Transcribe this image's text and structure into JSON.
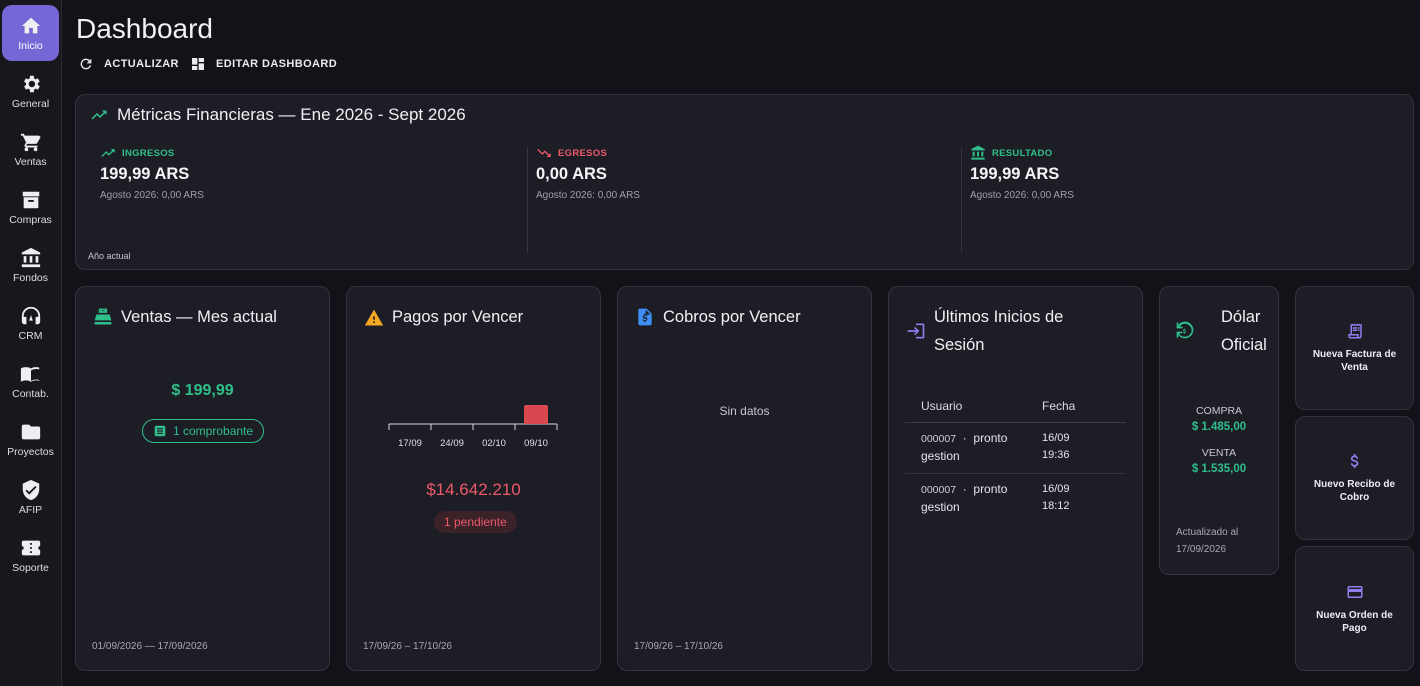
{
  "sidebar": {
    "items": [
      {
        "label": "Inicio",
        "icon": "home-icon",
        "active": true
      },
      {
        "label": "General",
        "icon": "gear-icon"
      },
      {
        "label": "Ventas",
        "icon": "cart-icon"
      },
      {
        "label": "Compras",
        "icon": "archive-box-icon"
      },
      {
        "label": "Fondos",
        "icon": "bank-icon"
      },
      {
        "label": "CRM",
        "icon": "headset-icon"
      },
      {
        "label": "Contab.",
        "icon": "book-icon"
      },
      {
        "label": "Proyectos",
        "icon": "folder-icon"
      },
      {
        "label": "AFIP",
        "icon": "shield-check-icon"
      },
      {
        "label": "Soporte",
        "icon": "ticket-icon"
      }
    ]
  },
  "header": {
    "title": "Dashboard",
    "refresh_label": "ACTUALIZAR",
    "edit_label": "EDITAR DASHBOARD"
  },
  "metrics": {
    "title": "Métricas Financieras — Ene 2026 - Sept 2026",
    "footnote": "Año actual",
    "items": [
      {
        "label": "INGRESOS",
        "value": "199,99 ARS",
        "sub": "Agosto 2026: 0,00 ARS",
        "color": "#2fbf8a",
        "icon": "trending-up-icon"
      },
      {
        "label": "EGRESOS",
        "value": "0,00 ARS",
        "sub": "Agosto 2026: 0,00 ARS",
        "color": "#ec5a6a",
        "icon": "trending-down-icon"
      },
      {
        "label": "RESULTADO",
        "value": "199,99 ARS",
        "sub": "Agosto 2026: 0,00 ARS",
        "color": "#2fbf8a",
        "icon": "bank-icon"
      }
    ]
  },
  "ventas": {
    "title": "Ventas — Mes actual",
    "amount": "$ 199,99",
    "chip": "1 comprobante",
    "footer": "01/09/2026 — 17/09/2026"
  },
  "pagos": {
    "title": "Pagos por Vencer",
    "amount": "$14.642.210",
    "chip": "1 pendiente",
    "footer": "17/09/26 – 17/10/26",
    "chart_data": {
      "type": "bar",
      "categories": [
        "17/09",
        "24/09",
        "02/10",
        "09/10"
      ],
      "values": [
        0,
        0,
        0,
        1
      ],
      "color": "#d9474f"
    }
  },
  "cobros": {
    "title": "Cobros por Vencer",
    "empty": "Sin datos",
    "footer": "17/09/26 – 17/10/26"
  },
  "sesiones": {
    "title_line1": "Últimos Inicios de",
    "title_line2": "Sesión",
    "col_user": "Usuario",
    "col_date": "Fecha",
    "rows": [
      {
        "uid": "000007",
        "sep": "·",
        "name": "pronto",
        "name2": "gestion",
        "date": "16/09",
        "time": "19:36"
      },
      {
        "uid": "000007",
        "sep": "·",
        "name": "pronto",
        "name2": "gestion",
        "date": "16/09",
        "time": "18:12"
      }
    ]
  },
  "dolar": {
    "title_line1": "Dólar",
    "title_line2": "Oficial",
    "compra_label": "COMPRA",
    "compra_value": "$ 1.485,00",
    "venta_label": "VENTA",
    "venta_value": "$ 1.535,00",
    "updated_line1": "Actualizado al",
    "updated_line2": "17/09/2026"
  },
  "actions": [
    {
      "label": "Nueva Factura de Venta",
      "icon": "invoice-icon"
    },
    {
      "label": "Nuevo Recibo de Cobro",
      "icon": "dollar-icon"
    },
    {
      "label": "Nueva Orden de Pago",
      "icon": "credit-card-icon"
    }
  ]
}
